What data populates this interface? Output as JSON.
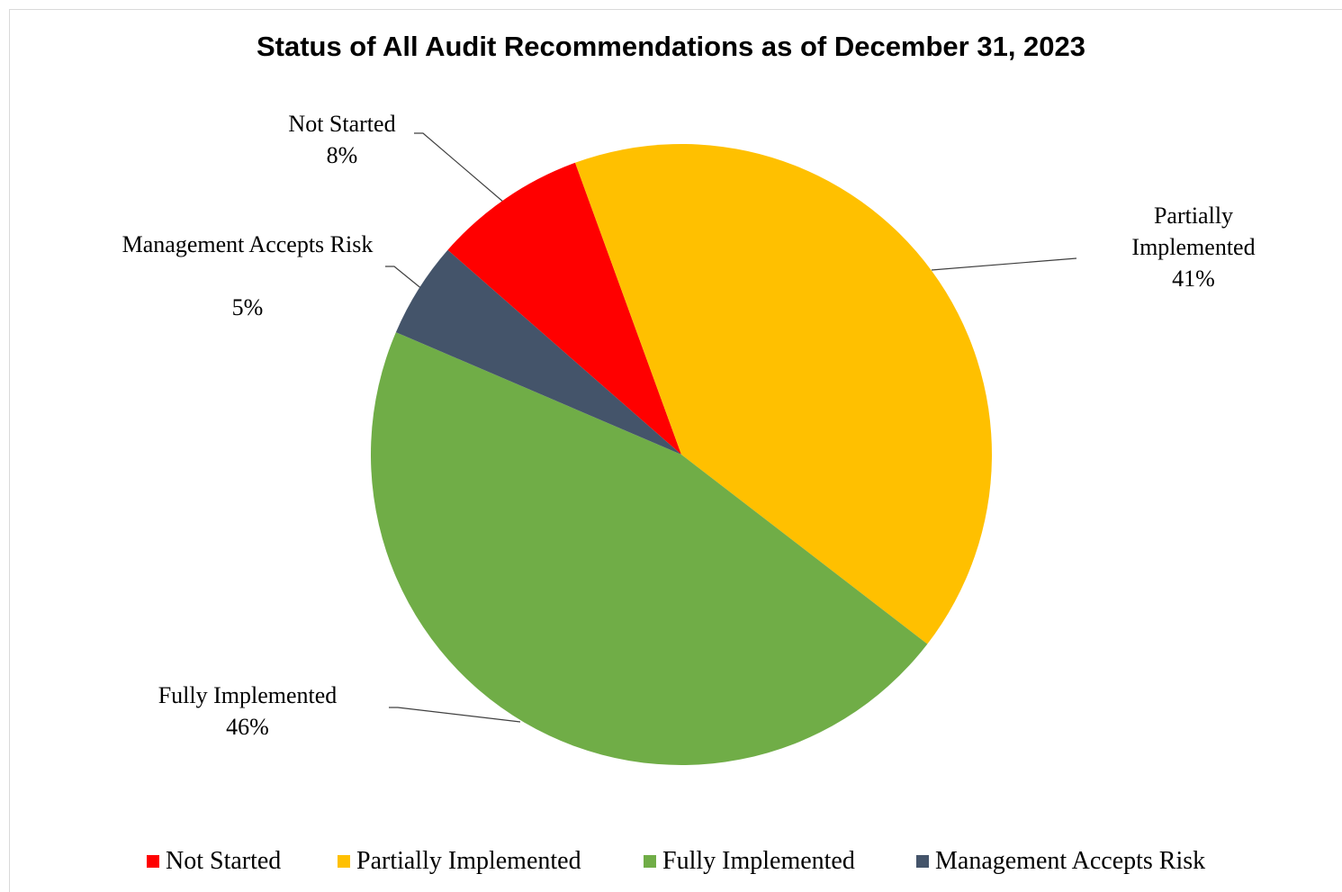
{
  "chart_data": {
    "type": "pie",
    "title": "Status of All Audit Recommendations as of December 31, 2023",
    "categories": [
      "Not Started",
      "Partially Implemented",
      "Fully Implemented",
      "Management Accepts Risk"
    ],
    "values": [
      8,
      41,
      46,
      5
    ],
    "value_labels": [
      "8%",
      "41%",
      "46%",
      "5%"
    ],
    "colors": [
      "#ff0000",
      "#ffc000",
      "#70ad47",
      "#44546a"
    ],
    "legend": "bottom"
  }
}
